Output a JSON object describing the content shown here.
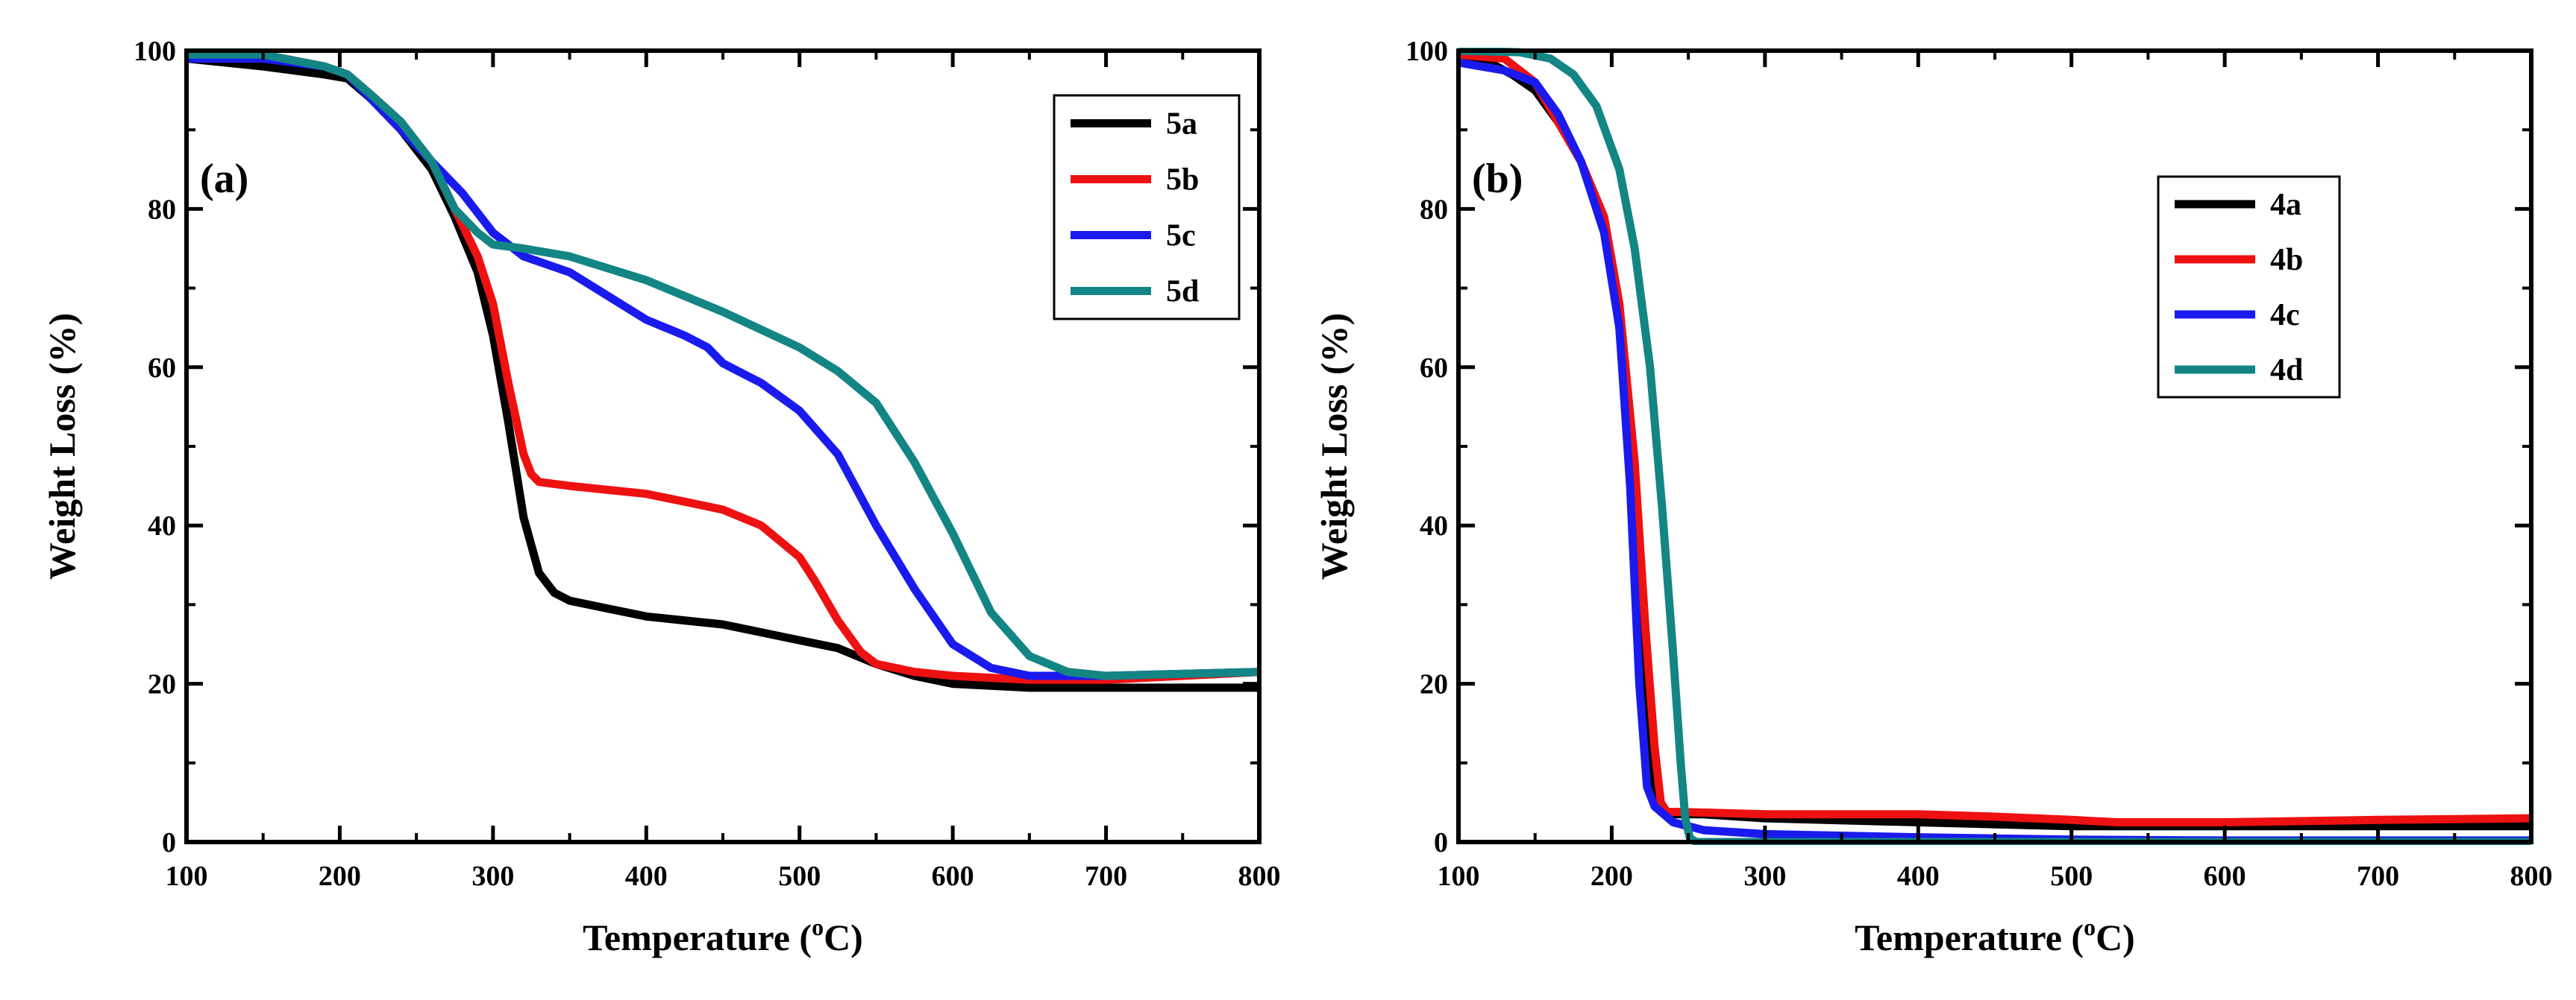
{
  "chart_data": [
    {
      "type": "line",
      "panel_label": "(a)",
      "xlabel": "Temperature (",
      "xlabel_sup": "o",
      "xlabel_unit": "C)",
      "ylabel": "Weight Loss (%)",
      "xlim": [
        100,
        800
      ],
      "ylim": [
        0,
        100
      ],
      "xticks": [
        100,
        200,
        300,
        400,
        500,
        600,
        700,
        800
      ],
      "yticks": [
        0,
        20,
        40,
        60,
        80,
        100
      ],
      "legend_position": "top-right",
      "series": [
        {
          "name": "5a",
          "color": "#000000",
          "x": [
            100,
            150,
            190,
            205,
            220,
            240,
            260,
            275,
            290,
            300,
            310,
            320,
            330,
            340,
            350,
            375,
            400,
            450,
            475,
            500,
            525,
            550,
            575,
            600,
            650,
            700,
            800
          ],
          "y": [
            99,
            98,
            97,
            96.5,
            94,
            90,
            85,
            79,
            72,
            64,
            53,
            41,
            34,
            31.5,
            30.5,
            29.5,
            28.5,
            27.5,
            26.5,
            25.5,
            24.5,
            22.5,
            21,
            20,
            19.5,
            19.5,
            19.5
          ]
        },
        {
          "name": "5b",
          "color": "#ee1111",
          "x": [
            100,
            150,
            190,
            205,
            220,
            240,
            260,
            275,
            290,
            300,
            310,
            320,
            325,
            330,
            350,
            400,
            425,
            450,
            475,
            500,
            510,
            525,
            540,
            550,
            575,
            600,
            650,
            700,
            800
          ],
          "y": [
            99.5,
            99.5,
            98,
            97,
            94.5,
            91,
            86,
            80,
            74,
            68,
            58,
            49,
            46.5,
            45.5,
            45,
            44,
            43,
            42,
            40,
            36,
            33,
            28,
            24,
            22.5,
            21.5,
            21,
            20.5,
            20.5,
            21.5
          ]
        },
        {
          "name": "5c",
          "color": "#1a1aee",
          "x": [
            100,
            150,
            190,
            205,
            220,
            240,
            260,
            280,
            300,
            320,
            350,
            375,
            400,
            425,
            440,
            450,
            460,
            475,
            500,
            525,
            550,
            575,
            600,
            625,
            650,
            700,
            800
          ],
          "y": [
            99,
            99,
            98,
            97,
            94,
            90,
            86,
            82,
            77,
            74,
            72,
            69,
            66,
            64,
            62.5,
            60.5,
            59.5,
            58,
            54.5,
            49,
            40,
            32,
            25,
            22,
            21,
            21,
            21.5
          ]
        },
        {
          "name": "5d",
          "color": "#138585",
          "x": [
            100,
            150,
            190,
            205,
            220,
            240,
            260,
            275,
            290,
            300,
            320,
            350,
            400,
            450,
            500,
            525,
            550,
            575,
            600,
            625,
            650,
            675,
            700,
            800
          ],
          "y": [
            99.5,
            99.5,
            98,
            97,
            94.5,
            91,
            86,
            80,
            77,
            75.5,
            75,
            74,
            71,
            67,
            62.5,
            59.5,
            55.5,
            48,
            39,
            29,
            23.5,
            21.5,
            21,
            21.5
          ]
        }
      ]
    },
    {
      "type": "line",
      "panel_label": "(b)",
      "xlabel": "Temperature (",
      "xlabel_sup": "o",
      "xlabel_unit": "C)",
      "ylabel": "Weight Loss (%)",
      "xlim": [
        100,
        800
      ],
      "ylim": [
        0,
        100
      ],
      "xticks": [
        100,
        200,
        300,
        400,
        500,
        600,
        700,
        800
      ],
      "yticks": [
        0,
        20,
        40,
        60,
        80,
        100
      ],
      "legend_position": "upper-right",
      "series": [
        {
          "name": "4a",
          "color": "#000000",
          "x": [
            100,
            120,
            135,
            150,
            165,
            180,
            195,
            205,
            215,
            222,
            228,
            232,
            240,
            260,
            300,
            400,
            500,
            600,
            800
          ],
          "y": [
            99,
            98.5,
            97,
            95,
            91,
            86,
            78,
            65,
            40,
            15,
            6,
            4,
            3.5,
            3.5,
            3,
            2.5,
            2,
            2,
            2
          ]
        },
        {
          "name": "4b",
          "color": "#ee1111",
          "x": [
            100,
            130,
            150,
            165,
            180,
            195,
            205,
            215,
            222,
            228,
            232,
            236,
            245,
            300,
            400,
            450,
            500,
            530,
            600,
            700,
            800
          ],
          "y": [
            99.5,
            99,
            96,
            91,
            86,
            79,
            68,
            48,
            27,
            12,
            5,
            3.8,
            3.8,
            3.5,
            3.5,
            3.2,
            2.8,
            2.5,
            2.5,
            2.8,
            3
          ]
        },
        {
          "name": "4c",
          "color": "#1a1aee",
          "x": [
            100,
            130,
            150,
            165,
            180,
            195,
            205,
            212,
            218,
            223,
            228,
            240,
            260,
            300,
            400,
            500,
            600,
            800
          ],
          "y": [
            98.5,
            97.5,
            96,
            92,
            86,
            77,
            65,
            45,
            20,
            7,
            4.5,
            2.5,
            1.5,
            1,
            0.6,
            0.3,
            0.2,
            0.2
          ]
        },
        {
          "name": "4d",
          "color": "#138585",
          "x": [
            100,
            140,
            160,
            175,
            190,
            205,
            215,
            225,
            233,
            240,
            245,
            248,
            251,
            255,
            300,
            400,
            600,
            800
          ],
          "y": [
            100,
            99.8,
            99,
            97,
            93,
            85,
            75,
            60,
            42,
            24,
            10,
            3,
            0.5,
            0,
            0,
            0,
            0,
            0
          ]
        }
      ]
    }
  ]
}
